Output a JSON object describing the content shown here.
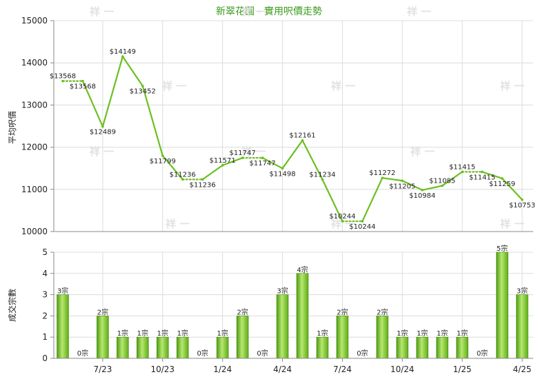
{
  "chart_data": [
    {
      "type": "line",
      "title": "新翠花園 - 實用呎價走勢",
      "ylabel": "平均呎價",
      "ylim": [
        10000,
        15000
      ],
      "yticks": [
        10000,
        11000,
        12000,
        13000,
        14000,
        15000
      ],
      "grid": true,
      "line_color": "#6abf1e",
      "points": [
        {
          "x": 0,
          "y": 13568,
          "label": "$13568"
        },
        {
          "x": 1,
          "y": 13568,
          "label": "$13568"
        },
        {
          "x": 2,
          "y": 12489,
          "label": "$12489"
        },
        {
          "x": 3,
          "y": 14149,
          "label": "$14149"
        },
        {
          "x": 4,
          "y": 13452,
          "label": "$13452"
        },
        {
          "x": 5,
          "y": 11799,
          "label": "$11799"
        },
        {
          "x": 6,
          "y": 11236,
          "label": "$11236"
        },
        {
          "x": 7,
          "y": 11236,
          "label": "$11236"
        },
        {
          "x": 8,
          "y": 11571,
          "label": "$11571"
        },
        {
          "x": 9,
          "y": 11747,
          "label": "$11747"
        },
        {
          "x": 10,
          "y": 11747,
          "label": "$11747"
        },
        {
          "x": 11,
          "y": 11498,
          "label": "$11498"
        },
        {
          "x": 12,
          "y": 12161,
          "label": "$12161"
        },
        {
          "x": 13,
          "y": 11234,
          "label": "$11234"
        },
        {
          "x": 14,
          "y": 10244,
          "label": "$10244"
        },
        {
          "x": 15,
          "y": 10244,
          "label": "$10244"
        },
        {
          "x": 16,
          "y": 11272,
          "label": "$11272"
        },
        {
          "x": 17,
          "y": 11205,
          "label": "$11205"
        },
        {
          "x": 18,
          "y": 10984,
          "label": "$10984"
        },
        {
          "x": 19,
          "y": 11085,
          "label": "$11085"
        },
        {
          "x": 20,
          "y": 11415,
          "label": "$11415"
        },
        {
          "x": 21,
          "y": 11415,
          "label": "$11415"
        },
        {
          "x": 22,
          "y": 11259,
          "label": "$11259"
        },
        {
          "x": 23,
          "y": 10753,
          "label": "$10753"
        }
      ],
      "flat_segments_dotted": [
        [
          0,
          1
        ],
        [
          6,
          7
        ],
        [
          9,
          10
        ],
        [
          14,
          15
        ],
        [
          20,
          21
        ]
      ]
    },
    {
      "type": "bar",
      "ylabel": "成交宗數",
      "ylim": [
        0,
        5
      ],
      "yticks": [
        0,
        1,
        2,
        3,
        4,
        5
      ],
      "grid": true,
      "bar_color": "#7cc52a",
      "values": [
        3,
        0,
        2,
        1,
        1,
        1,
        1,
        0,
        1,
        2,
        0,
        3,
        4,
        1,
        2,
        0,
        2,
        1,
        1,
        1,
        1,
        0,
        5,
        3
      ],
      "labels": [
        "3宗",
        "0宗",
        "2宗",
        "1宗",
        "1宗",
        "1宗",
        "1宗",
        "0宗",
        "1宗",
        "2宗",
        "0宗",
        "3宗",
        "4宗",
        "1宗",
        "2宗",
        "0宗",
        "2宗",
        "1宗",
        "1宗",
        "1宗",
        "1宗",
        "0宗",
        "5宗",
        "3宗"
      ],
      "xticks": [
        {
          "index": 2,
          "label": "7/23"
        },
        {
          "index": 5,
          "label": "10/23"
        },
        {
          "index": 8,
          "label": "1/24"
        },
        {
          "index": 11,
          "label": "4/24"
        },
        {
          "index": 14,
          "label": "7/24"
        },
        {
          "index": 17,
          "label": "10/24"
        },
        {
          "index": 20,
          "label": "1/25"
        },
        {
          "index": 23,
          "label": "4/25"
        }
      ]
    }
  ]
}
